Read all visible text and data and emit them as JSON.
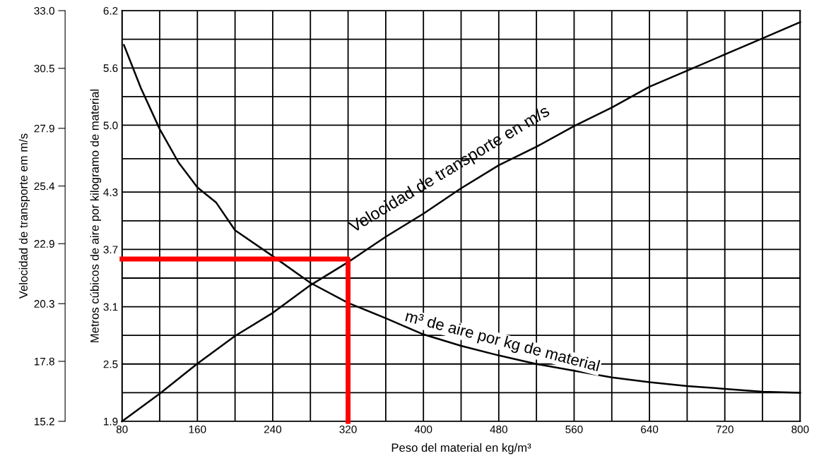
{
  "chart_data": {
    "type": "line",
    "xlabel": "Peso del material en kg/m³",
    "ylabel": "Metros cúbicos de aire por kilogramo de material",
    "y2label": "Velocidad de transporte em m/s",
    "x": [
      80,
      120,
      160,
      200,
      240,
      280,
      320,
      360,
      400,
      440,
      480,
      520,
      560,
      600,
      640,
      680,
      720,
      760,
      800
    ],
    "xlim": [
      80,
      800
    ],
    "xticks": [
      80,
      {
        "value": 120,
        "label": null
      },
      160,
      {
        "value": 200,
        "label": null
      },
      240,
      {
        "value": 280,
        "label": null
      },
      320,
      {
        "value": 360,
        "label": null
      },
      400,
      {
        "value": 440,
        "label": null
      },
      480,
      {
        "value": 520,
        "label": null
      },
      560,
      {
        "value": 600,
        "label": null
      },
      640,
      {
        "value": 680,
        "label": null
      },
      720,
      {
        "value": 760,
        "label": null
      },
      800
    ],
    "ylim": [
      1.9,
      6.2
    ],
    "yticks": [
      1.9,
      {
        "value": 2.2,
        "label": null
      },
      2.5,
      {
        "value": 2.8,
        "label": null
      },
      3.1,
      {
        "value": 3.4,
        "label": null
      },
      3.7,
      {
        "value": 4.0,
        "label": null
      },
      4.3,
      {
        "value": 4.65,
        "label": null
      },
      {
        "value": 5.0,
        "label": "5.0"
      },
      {
        "value": 5.3,
        "label": null
      },
      5.6,
      {
        "value": 5.9,
        "label": null
      },
      6.2
    ],
    "y2lim": [
      15.2,
      33.0
    ],
    "y2ticks": [
      15.2,
      17.8,
      20.3,
      22.9,
      25.4,
      27.9,
      30.5,
      {
        "value": 33.0,
        "label": "33.0"
      }
    ],
    "grid": true,
    "legend": false,
    "marker": "none",
    "line_style": "solid",
    "series": [
      {
        "name": "Velocidad de transporte en m/s",
        "color": "#000000",
        "axis": "y2",
        "values": [
          15.2,
          16.4,
          17.7,
          18.9,
          19.9,
          21.1,
          22.1,
          23.2,
          24.2,
          25.3,
          26.3,
          27.1,
          28.0,
          28.8,
          29.7,
          30.4,
          31.1,
          31.8,
          32.5
        ]
      },
      {
        "name": "m³ de aire por kg de material",
        "color": "#000000",
        "axis": "y",
        "x": [
          82,
          100,
          120,
          140,
          160,
          180,
          200,
          240,
          280,
          320,
          360,
          400,
          440,
          480,
          520,
          560,
          600,
          640,
          680,
          720,
          760,
          800
        ],
        "values": [
          5.84,
          5.39,
          4.96,
          4.61,
          4.35,
          4.19,
          3.9,
          3.63,
          3.35,
          3.14,
          2.98,
          2.81,
          2.69,
          2.59,
          2.5,
          2.43,
          2.36,
          2.31,
          2.27,
          2.24,
          2.21,
          2.2
        ]
      },
      {
        "color": "#ff0000",
        "axis": "y",
        "x": [
          80,
          320,
          320
        ],
        "values": [
          3.6,
          3.6,
          1.9
        ]
      }
    ]
  }
}
